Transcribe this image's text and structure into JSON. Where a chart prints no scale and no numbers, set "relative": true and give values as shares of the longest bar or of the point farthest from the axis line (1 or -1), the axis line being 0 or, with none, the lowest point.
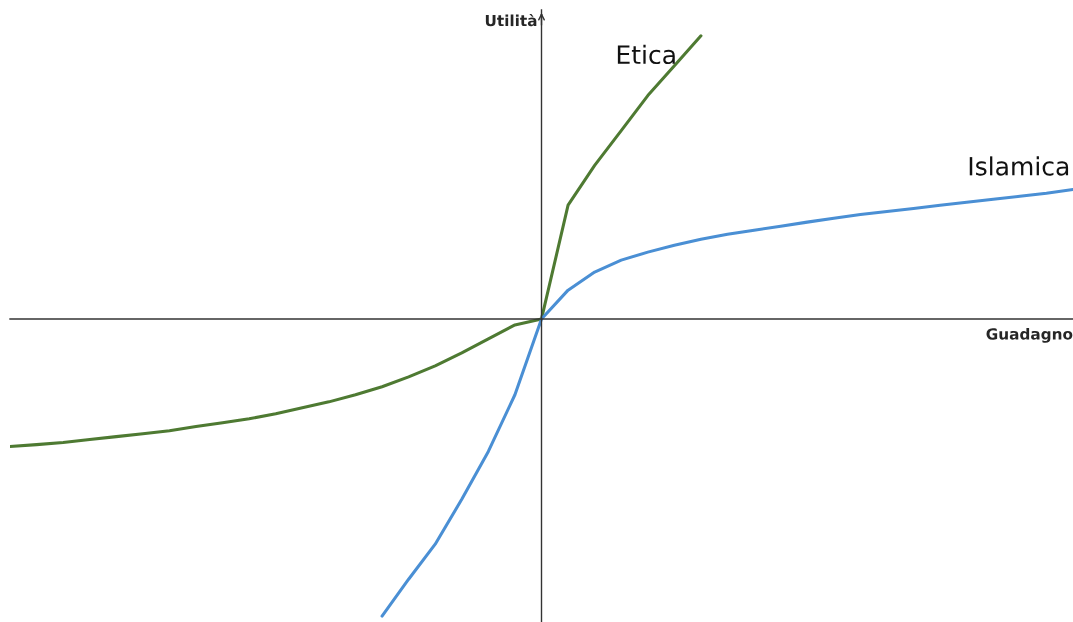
{
  "chart_data": {
    "type": "line",
    "relative": true,
    "xlabel": "Guadagno",
    "ylabel": "Utilità",
    "categories": [
      null,
      null,
      null,
      null,
      null,
      null,
      null,
      null,
      null,
      null,
      null,
      null,
      null,
      null,
      null,
      null,
      null,
      null,
      null,
      null,
      null,
      null,
      null,
      null,
      null,
      null,
      null,
      null,
      null,
      null,
      null,
      null,
      null,
      null,
      null,
      null,
      null,
      null,
      null,
      null,
      null
    ],
    "series": [
      {
        "name": "Etica",
        "color": "#4e7a32",
        "values": [
          -0.429,
          -0.423,
          -0.416,
          -0.406,
          -0.396,
          -0.386,
          -0.376,
          -0.362,
          -0.349,
          -0.336,
          -0.319,
          -0.299,
          -0.279,
          -0.255,
          -0.228,
          -0.195,
          -0.158,
          -0.114,
          -0.067,
          -0.02,
          0,
          0.383,
          0.517,
          0.634,
          0.752,
          0.852,
          0.953,
          null,
          null,
          null,
          null,
          null,
          null,
          null,
          null,
          null,
          null,
          null,
          null,
          null,
          null
        ]
      },
      {
        "name": "Islamica",
        "color": "#4a8fd4",
        "values": [
          null,
          null,
          null,
          null,
          null,
          null,
          null,
          null,
          null,
          null,
          null,
          null,
          null,
          null,
          -1.0,
          -0.876,
          -0.758,
          -0.607,
          -0.446,
          -0.255,
          0,
          0.097,
          0.158,
          0.198,
          0.225,
          0.248,
          0.268,
          0.285,
          0.299,
          0.312,
          0.326,
          0.339,
          0.352,
          0.362,
          0.372,
          0.383,
          0.393,
          0.403,
          0.413,
          0.423,
          0.436
        ]
      }
    ],
    "legend": false
  }
}
